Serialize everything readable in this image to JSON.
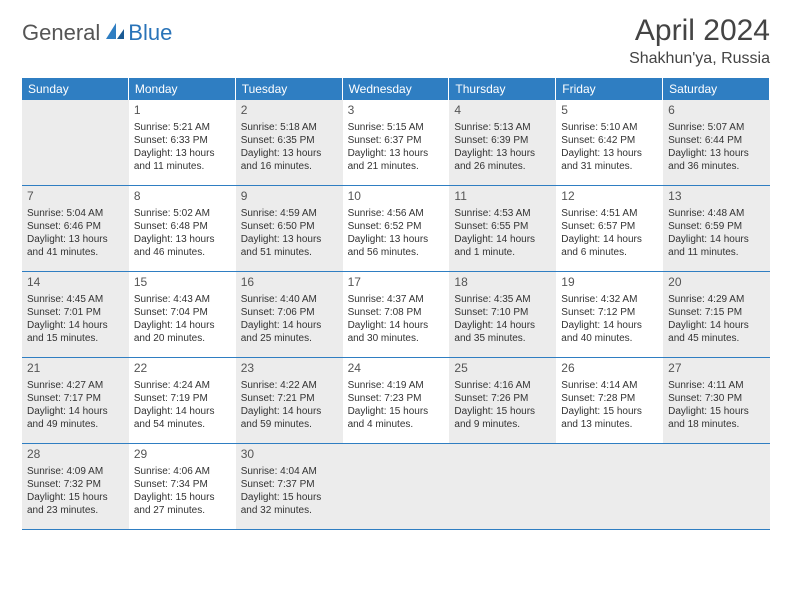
{
  "logo": {
    "general": "General",
    "blue": "Blue"
  },
  "title": "April 2024",
  "location": "Shakhun'ya, Russia",
  "colors": {
    "header_bg": "#2f7ec2",
    "header_text": "#ffffff",
    "cell_border": "#2f7ec2",
    "shade_bg": "#ececec",
    "text": "#333333"
  },
  "dayHeaders": [
    "Sunday",
    "Monday",
    "Tuesday",
    "Wednesday",
    "Thursday",
    "Friday",
    "Saturday"
  ],
  "weeks": [
    [
      {
        "empty": true,
        "shade": true
      },
      {
        "n": "1",
        "shade": false,
        "sunrise": "Sunrise: 5:21 AM",
        "sunset": "Sunset: 6:33 PM",
        "dl1": "Daylight: 13 hours",
        "dl2": "and 11 minutes."
      },
      {
        "n": "2",
        "shade": true,
        "sunrise": "Sunrise: 5:18 AM",
        "sunset": "Sunset: 6:35 PM",
        "dl1": "Daylight: 13 hours",
        "dl2": "and 16 minutes."
      },
      {
        "n": "3",
        "shade": false,
        "sunrise": "Sunrise: 5:15 AM",
        "sunset": "Sunset: 6:37 PM",
        "dl1": "Daylight: 13 hours",
        "dl2": "and 21 minutes."
      },
      {
        "n": "4",
        "shade": true,
        "sunrise": "Sunrise: 5:13 AM",
        "sunset": "Sunset: 6:39 PM",
        "dl1": "Daylight: 13 hours",
        "dl2": "and 26 minutes."
      },
      {
        "n": "5",
        "shade": false,
        "sunrise": "Sunrise: 5:10 AM",
        "sunset": "Sunset: 6:42 PM",
        "dl1": "Daylight: 13 hours",
        "dl2": "and 31 minutes."
      },
      {
        "n": "6",
        "shade": true,
        "sunrise": "Sunrise: 5:07 AM",
        "sunset": "Sunset: 6:44 PM",
        "dl1": "Daylight: 13 hours",
        "dl2": "and 36 minutes."
      }
    ],
    [
      {
        "n": "7",
        "shade": true,
        "sunrise": "Sunrise: 5:04 AM",
        "sunset": "Sunset: 6:46 PM",
        "dl1": "Daylight: 13 hours",
        "dl2": "and 41 minutes."
      },
      {
        "n": "8",
        "shade": false,
        "sunrise": "Sunrise: 5:02 AM",
        "sunset": "Sunset: 6:48 PM",
        "dl1": "Daylight: 13 hours",
        "dl2": "and 46 minutes."
      },
      {
        "n": "9",
        "shade": true,
        "sunrise": "Sunrise: 4:59 AM",
        "sunset": "Sunset: 6:50 PM",
        "dl1": "Daylight: 13 hours",
        "dl2": "and 51 minutes."
      },
      {
        "n": "10",
        "shade": false,
        "sunrise": "Sunrise: 4:56 AM",
        "sunset": "Sunset: 6:52 PM",
        "dl1": "Daylight: 13 hours",
        "dl2": "and 56 minutes."
      },
      {
        "n": "11",
        "shade": true,
        "sunrise": "Sunrise: 4:53 AM",
        "sunset": "Sunset: 6:55 PM",
        "dl1": "Daylight: 14 hours",
        "dl2": "and 1 minute."
      },
      {
        "n": "12",
        "shade": false,
        "sunrise": "Sunrise: 4:51 AM",
        "sunset": "Sunset: 6:57 PM",
        "dl1": "Daylight: 14 hours",
        "dl2": "and 6 minutes."
      },
      {
        "n": "13",
        "shade": true,
        "sunrise": "Sunrise: 4:48 AM",
        "sunset": "Sunset: 6:59 PM",
        "dl1": "Daylight: 14 hours",
        "dl2": "and 11 minutes."
      }
    ],
    [
      {
        "n": "14",
        "shade": true,
        "sunrise": "Sunrise: 4:45 AM",
        "sunset": "Sunset: 7:01 PM",
        "dl1": "Daylight: 14 hours",
        "dl2": "and 15 minutes."
      },
      {
        "n": "15",
        "shade": false,
        "sunrise": "Sunrise: 4:43 AM",
        "sunset": "Sunset: 7:04 PM",
        "dl1": "Daylight: 14 hours",
        "dl2": "and 20 minutes."
      },
      {
        "n": "16",
        "shade": true,
        "sunrise": "Sunrise: 4:40 AM",
        "sunset": "Sunset: 7:06 PM",
        "dl1": "Daylight: 14 hours",
        "dl2": "and 25 minutes."
      },
      {
        "n": "17",
        "shade": false,
        "sunrise": "Sunrise: 4:37 AM",
        "sunset": "Sunset: 7:08 PM",
        "dl1": "Daylight: 14 hours",
        "dl2": "and 30 minutes."
      },
      {
        "n": "18",
        "shade": true,
        "sunrise": "Sunrise: 4:35 AM",
        "sunset": "Sunset: 7:10 PM",
        "dl1": "Daylight: 14 hours",
        "dl2": "and 35 minutes."
      },
      {
        "n": "19",
        "shade": false,
        "sunrise": "Sunrise: 4:32 AM",
        "sunset": "Sunset: 7:12 PM",
        "dl1": "Daylight: 14 hours",
        "dl2": "and 40 minutes."
      },
      {
        "n": "20",
        "shade": true,
        "sunrise": "Sunrise: 4:29 AM",
        "sunset": "Sunset: 7:15 PM",
        "dl1": "Daylight: 14 hours",
        "dl2": "and 45 minutes."
      }
    ],
    [
      {
        "n": "21",
        "shade": true,
        "sunrise": "Sunrise: 4:27 AM",
        "sunset": "Sunset: 7:17 PM",
        "dl1": "Daylight: 14 hours",
        "dl2": "and 49 minutes."
      },
      {
        "n": "22",
        "shade": false,
        "sunrise": "Sunrise: 4:24 AM",
        "sunset": "Sunset: 7:19 PM",
        "dl1": "Daylight: 14 hours",
        "dl2": "and 54 minutes."
      },
      {
        "n": "23",
        "shade": true,
        "sunrise": "Sunrise: 4:22 AM",
        "sunset": "Sunset: 7:21 PM",
        "dl1": "Daylight: 14 hours",
        "dl2": "and 59 minutes."
      },
      {
        "n": "24",
        "shade": false,
        "sunrise": "Sunrise: 4:19 AM",
        "sunset": "Sunset: 7:23 PM",
        "dl1": "Daylight: 15 hours",
        "dl2": "and 4 minutes."
      },
      {
        "n": "25",
        "shade": true,
        "sunrise": "Sunrise: 4:16 AM",
        "sunset": "Sunset: 7:26 PM",
        "dl1": "Daylight: 15 hours",
        "dl2": "and 9 minutes."
      },
      {
        "n": "26",
        "shade": false,
        "sunrise": "Sunrise: 4:14 AM",
        "sunset": "Sunset: 7:28 PM",
        "dl1": "Daylight: 15 hours",
        "dl2": "and 13 minutes."
      },
      {
        "n": "27",
        "shade": true,
        "sunrise": "Sunrise: 4:11 AM",
        "sunset": "Sunset: 7:30 PM",
        "dl1": "Daylight: 15 hours",
        "dl2": "and 18 minutes."
      }
    ],
    [
      {
        "n": "28",
        "shade": true,
        "sunrise": "Sunrise: 4:09 AM",
        "sunset": "Sunset: 7:32 PM",
        "dl1": "Daylight: 15 hours",
        "dl2": "and 23 minutes."
      },
      {
        "n": "29",
        "shade": false,
        "sunrise": "Sunrise: 4:06 AM",
        "sunset": "Sunset: 7:34 PM",
        "dl1": "Daylight: 15 hours",
        "dl2": "and 27 minutes."
      },
      {
        "n": "30",
        "shade": true,
        "sunrise": "Sunrise: 4:04 AM",
        "sunset": "Sunset: 7:37 PM",
        "dl1": "Daylight: 15 hours",
        "dl2": "and 32 minutes."
      },
      {
        "empty": true,
        "shade": false
      },
      {
        "empty": true,
        "shade": true
      },
      {
        "empty": true,
        "shade": false
      },
      {
        "empty": true,
        "shade": true
      }
    ]
  ]
}
